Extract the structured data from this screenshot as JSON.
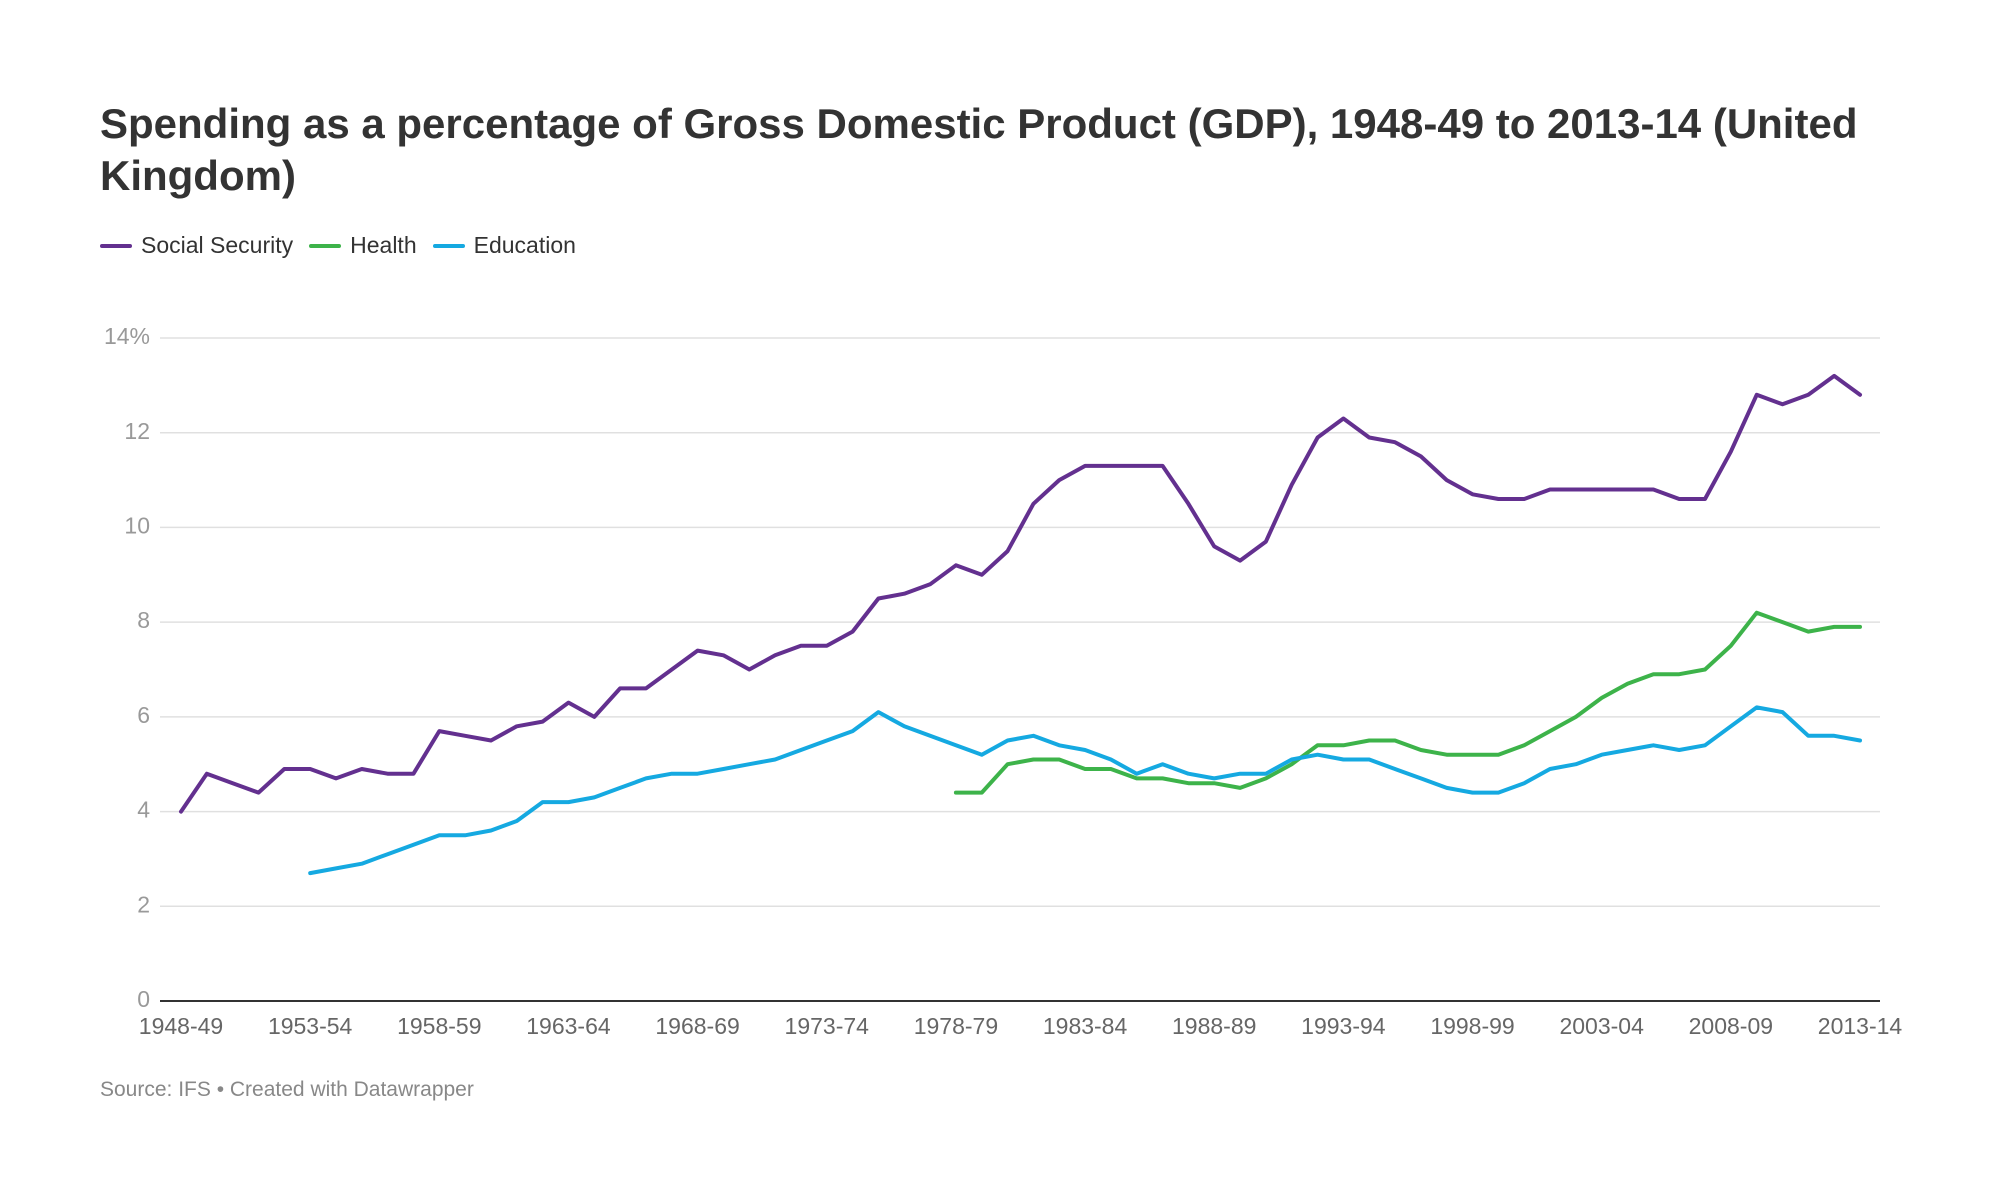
{
  "chart_data": {
    "type": "line",
    "title": "Spending as a percentage of Gross Domestic Product (GDP), 1948-49 to 2013-14 (United Kingdom)",
    "footer": "Source: IFS • Created with Datawrapper",
    "categories": [
      "1948-49",
      null,
      null,
      null,
      null,
      "1953-54",
      null,
      null,
      null,
      null,
      "1958-59",
      null,
      null,
      null,
      null,
      "1963-64",
      null,
      null,
      null,
      null,
      "1968-69",
      null,
      null,
      null,
      null,
      "1973-74",
      null,
      null,
      null,
      null,
      "1978-79",
      null,
      null,
      null,
      null,
      "1983-84",
      null,
      null,
      null,
      null,
      "1988-89",
      null,
      null,
      null,
      null,
      "1993-94",
      null,
      null,
      null,
      null,
      "1998-99",
      null,
      null,
      null,
      null,
      "2003-04",
      null,
      null,
      null,
      null,
      "2008-09",
      null,
      null,
      null,
      null,
      "2013-14"
    ],
    "series": [
      {
        "name": "Social Security",
        "color": "#63308f",
        "values": [
          4.0,
          4.8,
          4.6,
          4.4,
          4.9,
          4.9,
          4.7,
          4.9,
          4.8,
          4.8,
          5.7,
          5.6,
          5.5,
          5.8,
          5.9,
          6.3,
          6.0,
          6.6,
          6.6,
          7.0,
          7.4,
          7.3,
          7.0,
          7.3,
          7.5,
          7.5,
          7.8,
          8.5,
          8.6,
          8.8,
          9.2,
          9.0,
          9.5,
          10.5,
          11.0,
          11.3,
          11.3,
          11.3,
          11.3,
          10.5,
          9.6,
          9.3,
          9.7,
          10.9,
          11.9,
          12.3,
          11.9,
          11.8,
          11.5,
          11.0,
          10.7,
          10.6,
          10.6,
          10.8,
          10.8,
          10.8,
          10.8,
          10.8,
          10.6,
          10.6,
          11.6,
          12.8,
          12.6,
          12.8,
          13.2,
          12.8
        ]
      },
      {
        "name": "Health",
        "color": "#3db34a",
        "values": [
          null,
          null,
          null,
          null,
          null,
          null,
          null,
          null,
          null,
          null,
          null,
          null,
          null,
          null,
          null,
          null,
          null,
          null,
          null,
          null,
          null,
          null,
          null,
          null,
          null,
          null,
          null,
          null,
          null,
          null,
          4.4,
          4.4,
          5.0,
          5.1,
          5.1,
          4.9,
          4.9,
          4.7,
          4.7,
          4.6,
          4.6,
          4.5,
          4.7,
          5.0,
          5.4,
          5.4,
          5.5,
          5.5,
          5.3,
          5.2,
          5.2,
          5.2,
          5.4,
          5.7,
          6.0,
          6.4,
          6.7,
          6.9,
          6.9,
          7.0,
          7.5,
          8.2,
          8.0,
          7.8,
          7.9,
          7.9
        ]
      },
      {
        "name": "Education",
        "color": "#15a9e1",
        "values": [
          null,
          null,
          null,
          null,
          null,
          2.7,
          2.8,
          2.9,
          3.1,
          3.3,
          3.5,
          3.5,
          3.6,
          3.8,
          4.2,
          4.2,
          4.3,
          4.5,
          4.7,
          4.8,
          4.8,
          4.9,
          5.0,
          5.1,
          5.3,
          5.5,
          5.7,
          6.1,
          5.8,
          5.6,
          5.4,
          5.2,
          5.5,
          5.6,
          5.4,
          5.3,
          5.1,
          4.8,
          5.0,
          4.8,
          4.7,
          4.8,
          4.8,
          5.1,
          5.2,
          5.1,
          5.1,
          4.9,
          4.7,
          4.5,
          4.4,
          4.4,
          4.6,
          4.9,
          5.0,
          5.2,
          5.3,
          5.4,
          5.3,
          5.4,
          5.8,
          6.2,
          6.1,
          5.6,
          5.6,
          5.5
        ]
      }
    ],
    "ylim": [
      0,
      14
    ],
    "yticks": [
      0,
      2,
      4,
      6,
      8,
      10,
      12,
      {
        "value": 14,
        "label": "14%"
      }
    ],
    "grid": true
  }
}
